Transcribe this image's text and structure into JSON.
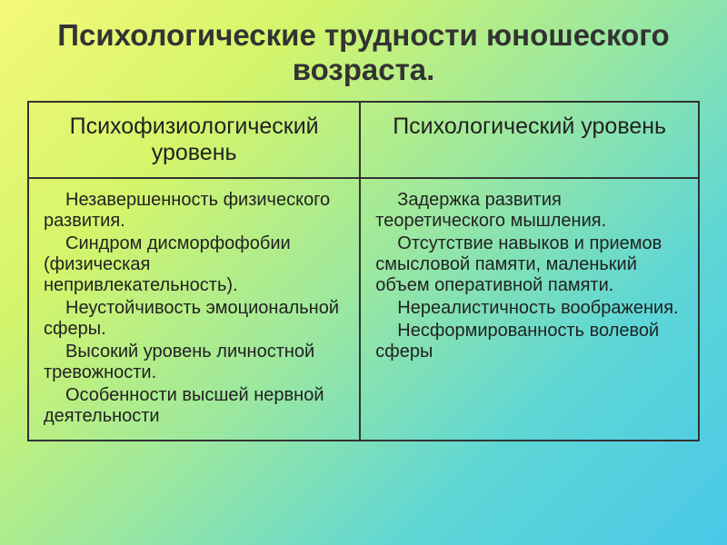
{
  "title": {
    "text": "Психологические трудности юношеского возраста.",
    "fontsize": 33,
    "color": "#333333"
  },
  "table": {
    "border_color": "#333333",
    "border_width": 2,
    "headers": {
      "left": "Психофизиологический уровень",
      "right": "Психологический уровень",
      "fontsize": 25
    },
    "body_fontsize": 20,
    "left_items": [
      "Незавершенность физического развития.",
      "Синдром дисморфофобии (физическая непривлекательность).",
      "Неустойчивость эмоциональной сферы.",
      "Высокий уровень личностной тревожности.",
      "Особенности высшей нервной деятельности"
    ],
    "right_items": [
      "Задержка развития теоретического мышления.",
      "Отсутствие навыков и приемов смысловой памяти, маленький объем оперативной памяти.",
      "Нереалистичность воображения.",
      "Несформированность волевой сферы"
    ]
  },
  "background": {
    "gradient_stops": [
      "#f5f87a",
      "#d4f56a",
      "#9de89e",
      "#5dd6d6",
      "#4ac8e8"
    ],
    "gradient_angle_deg": 135
  }
}
